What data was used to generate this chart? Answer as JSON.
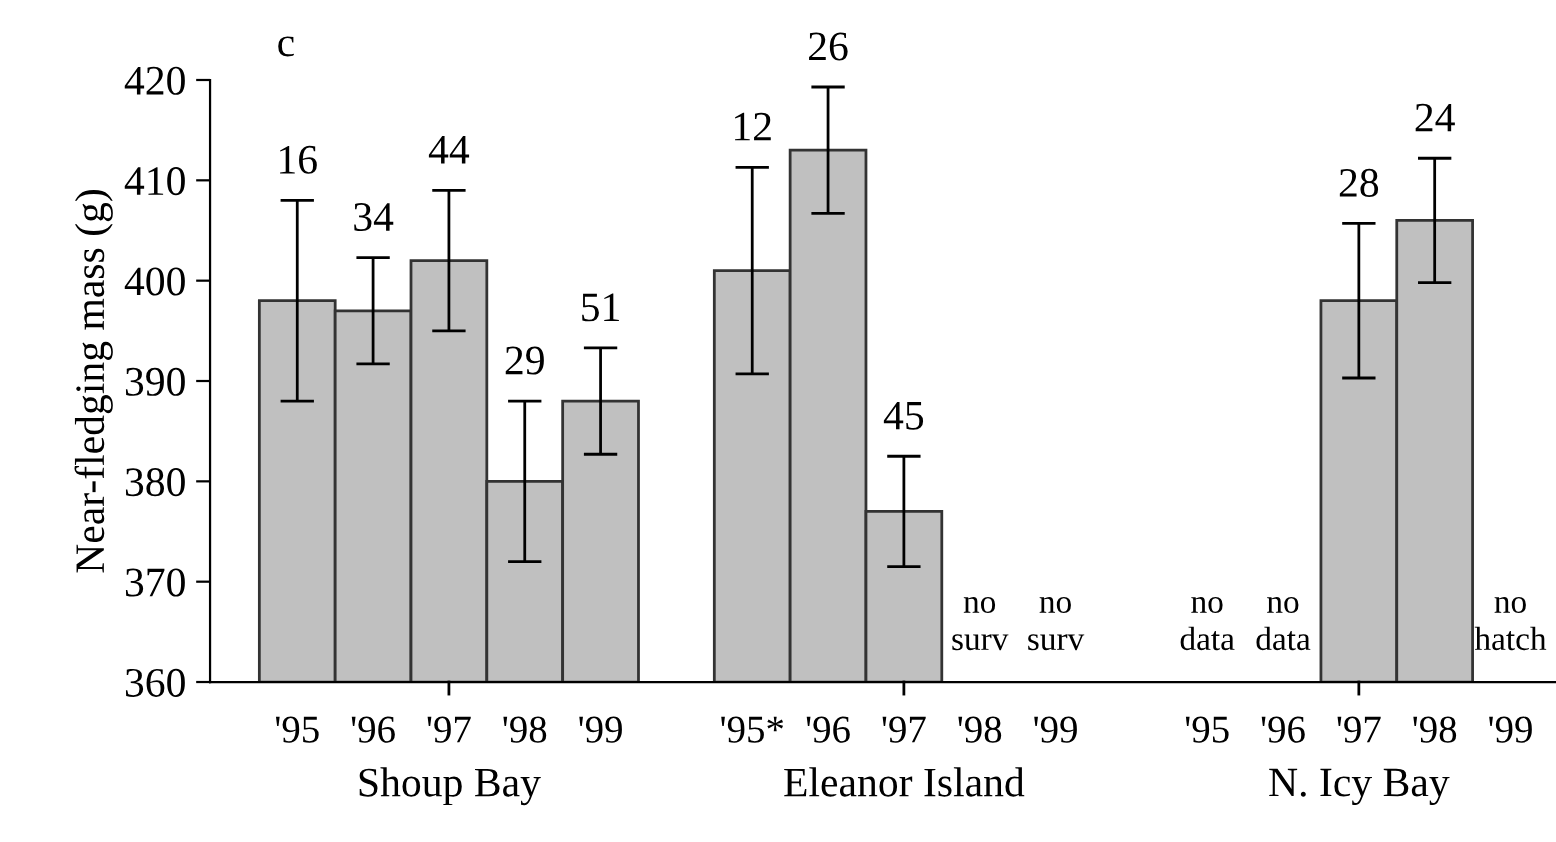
{
  "chart_data": {
    "type": "bar",
    "ylabel": "Near-fledging mass (g)",
    "categories": [
      "'95",
      "'96",
      "'97",
      "'98",
      "'99",
      null,
      "'95*",
      "'96",
      "'97",
      "'98",
      "'99",
      null,
      "'95",
      "'96",
      "'97",
      "'98",
      "'99"
    ],
    "values": [
      398,
      397,
      402,
      380,
      388,
      null,
      401,
      413,
      377,
      null,
      null,
      null,
      null,
      null,
      398,
      406,
      null
    ],
    "errors": [
      10,
      5.3,
      7,
      8,
      5.3,
      null,
      10.3,
      6.3,
      5.5,
      null,
      null,
      null,
      null,
      null,
      7.7,
      6.2,
      null
    ],
    "color": "#c0c0c0",
    "ylim": [
      360,
      420
    ],
    "yticks": [
      360,
      370,
      380,
      390,
      400,
      410,
      420
    ],
    "grid": false,
    "legend": false,
    "annotations": [
      "c",
      "Shoup Bay",
      "Eleanor Island",
      "N. Icy Bay",
      "16",
      "34",
      "44",
      "29",
      "51",
      "12",
      "26",
      "45",
      "28",
      "24",
      "no\nsurv",
      "no\nsurv",
      "no\ndata",
      "no\ndata",
      "no\nhatch"
    ]
  }
}
